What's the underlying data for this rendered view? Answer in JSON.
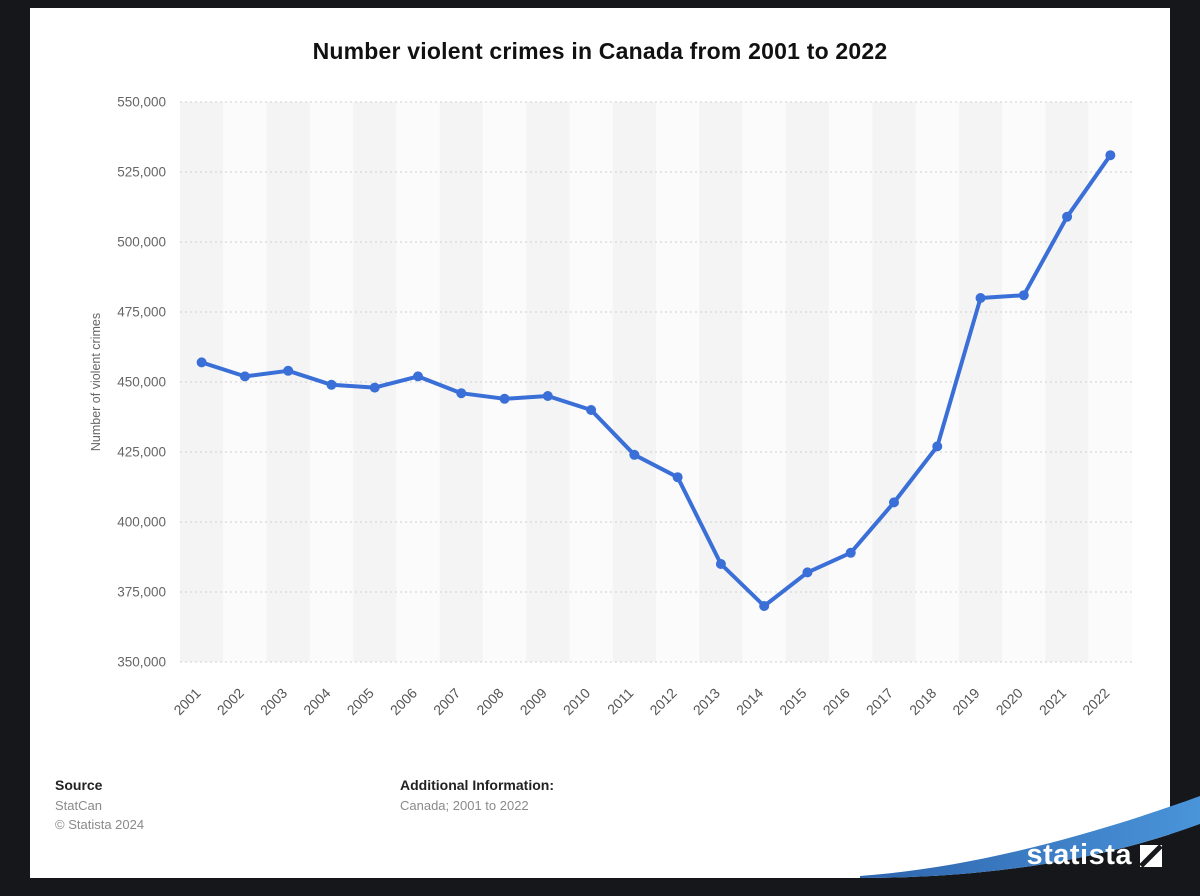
{
  "title": "Number violent crimes in Canada from 2001 to 2022",
  "chart_data": {
    "type": "line",
    "x": [
      "2001",
      "2002",
      "2003",
      "2004",
      "2005",
      "2006",
      "2007",
      "2008",
      "2009",
      "2010",
      "2011",
      "2012",
      "2013",
      "2014",
      "2015",
      "2016",
      "2017",
      "2018",
      "2019",
      "2020",
      "2021",
      "2022"
    ],
    "values": [
      457000,
      452000,
      454000,
      449000,
      448000,
      452000,
      446000,
      444000,
      445000,
      440000,
      424000,
      416000,
      385000,
      370000,
      382000,
      389000,
      407000,
      427000,
      480000,
      481000,
      509000,
      531000
    ],
    "title": "Number violent crimes in Canada from 2001 to 2022",
    "xlabel": "",
    "ylabel": "Number of violent crimes",
    "ylim": [
      350000,
      550000
    ],
    "ytick_step": 25000,
    "grid": "dashed-horizontal",
    "legend": "none",
    "line_color": "#3a6fd8"
  },
  "footer": {
    "source_label": "Source",
    "source_name": "StatCan",
    "copyright": "© Statista 2024",
    "additional_info_label": "Additional Information:",
    "additional_info_value": "Canada; 2001 to 2022"
  },
  "branding": {
    "logo_text": "statista",
    "swoosh_color_start": "#2d64ad",
    "swoosh_color_end": "#4a94d9"
  }
}
